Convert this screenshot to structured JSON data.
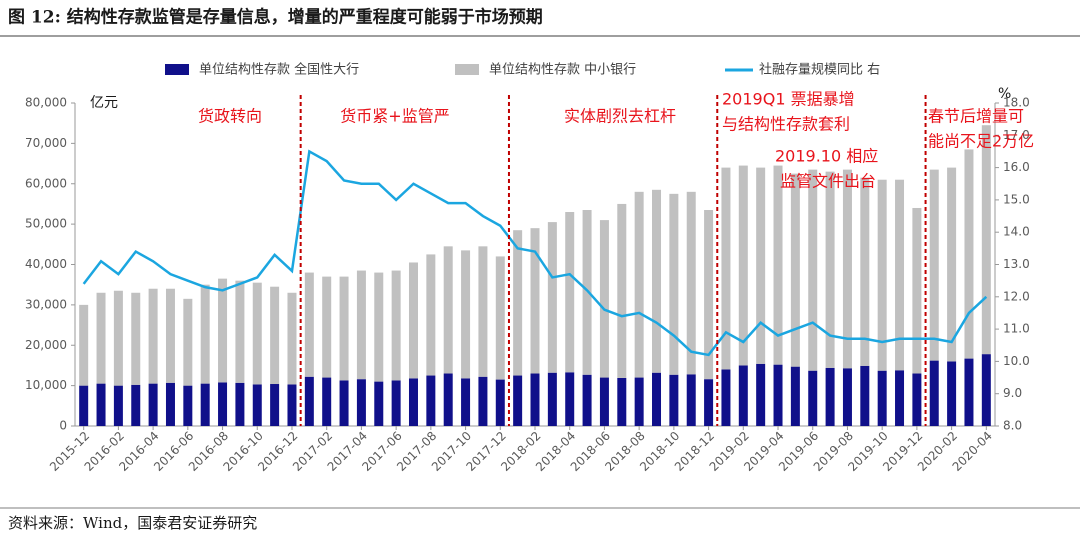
{
  "chart_data": {
    "type": "bar-line",
    "title": "图 12: 结构性存款监管是存量信息，增量的严重程度可能弱于市场预期",
    "source": "资料来源：Wind，国泰君安证券研究",
    "ylabel": "亿元",
    "y2label": "%",
    "categories": [
      "2015-12",
      null,
      "2016-02",
      null,
      "2016-04",
      null,
      "2016-06",
      null,
      "2016-08",
      null,
      "2016-10",
      null,
      "2016-12",
      null,
      "2017-02",
      null,
      "2017-04",
      null,
      "2017-06",
      null,
      "2017-08",
      null,
      "2017-10",
      null,
      "2017-12",
      null,
      "2018-02",
      null,
      "2018-04",
      null,
      "2018-06",
      null,
      "2018-08",
      null,
      "2018-10",
      null,
      "2018-12",
      null,
      "2019-02",
      null,
      "2019-04",
      null,
      "2019-06",
      null,
      "2019-08",
      null,
      "2019-10",
      null,
      "2019-12",
      null,
      "2020-02",
      null,
      "2020-04"
    ],
    "series": [
      {
        "name": "单位结构性存款 全国性大行",
        "color": "#10108a",
        "stack": true,
        "values": [
          10000,
          10500,
          10000,
          10200,
          10500,
          10700,
          10000,
          10500,
          10800,
          10700,
          10300,
          10400,
          10300,
          12200,
          12000,
          11300,
          11600,
          11000,
          11300,
          11800,
          12500,
          13000,
          11800,
          12200,
          11500,
          12500,
          13000,
          13200,
          13300,
          12700,
          12000,
          11900,
          12000,
          13200,
          12700,
          12800,
          11600,
          14000,
          15000,
          15400,
          15200,
          14700,
          13700,
          14400,
          14300,
          14900,
          13700,
          13800,
          13000,
          16200,
          16000,
          16700,
          17800
        ]
      },
      {
        "name": "单位结构性存款 中小银行",
        "color": "#c0c0c0",
        "stack": true,
        "values": [
          20000,
          22500,
          23500,
          22800,
          23500,
          23300,
          21500,
          24500,
          25700,
          25300,
          25200,
          24100,
          22700,
          25800,
          25000,
          25700,
          26900,
          27000,
          27200,
          28700,
          30000,
          31500,
          31700,
          32300,
          30500,
          36000,
          36000,
          37300,
          39700,
          40800,
          39000,
          43100,
          46000,
          45300,
          44800,
          45200,
          41900,
          50000,
          49500,
          48600,
          49300,
          47800,
          49800,
          48600,
          49200,
          46600,
          47300,
          47200,
          41000,
          47300,
          48000,
          51800,
          56700
        ]
      },
      {
        "name": "社融存量规模同比 右",
        "color": "#1ba6e0",
        "axis": "y2",
        "values": [
          12.4,
          13.1,
          12.7,
          13.4,
          13.1,
          12.7,
          12.5,
          12.3,
          12.2,
          12.4,
          12.6,
          13.3,
          12.8,
          16.5,
          16.2,
          15.6,
          15.5,
          15.5,
          15.0,
          15.5,
          15.2,
          14.9,
          14.9,
          14.5,
          14.2,
          13.5,
          13.4,
          12.6,
          12.7,
          12.2,
          11.6,
          11.4,
          11.5,
          11.2,
          10.8,
          10.3,
          10.2,
          10.9,
          10.6,
          11.2,
          10.8,
          11.0,
          11.2,
          10.8,
          10.7,
          10.7,
          10.6,
          10.7,
          10.7,
          10.7,
          10.6,
          11.5,
          12.0
        ]
      }
    ],
    "ylim": [
      0,
      80000
    ],
    "yticks": [
      0,
      {
        "value": 10000,
        "label": "10,000"
      },
      {
        "value": 20000,
        "label": "20,000"
      },
      {
        "value": 30000,
        "label": "30,000"
      },
      {
        "value": 40000,
        "label": "40,000"
      },
      {
        "value": 50000,
        "label": "50,000"
      },
      {
        "value": 60000,
        "label": "60,000"
      },
      {
        "value": 70000,
        "label": "70,000"
      },
      {
        "value": 80000,
        "label": "80,000"
      }
    ],
    "y2lim": [
      8,
      18
    ],
    "y2ticks": [
      {
        "value": 8,
        "label": "8.0"
      },
      {
        "value": 9,
        "label": "9.0"
      },
      {
        "value": 10,
        "label": "10.0"
      },
      {
        "value": 11,
        "label": "11.0"
      },
      {
        "value": 12,
        "label": "12.0"
      },
      {
        "value": 13,
        "label": "13.0"
      },
      {
        "value": 14,
        "label": "14.0"
      },
      {
        "value": 15,
        "label": "15.0"
      },
      {
        "value": 16,
        "label": "16.0"
      },
      {
        "value": 17,
        "label": "17.0"
      },
      {
        "value": 18,
        "label": "18.0"
      }
    ],
    "annotations": [
      "货政转向",
      "货币紧+监管严",
      "实体剧烈去杠杆",
      "2019Q1 票据暴增",
      "与结构性存款套利",
      "2019.10 相应",
      "监管文件出台",
      "春节后增量可",
      "能尚不足2万亿"
    ],
    "annotation_color": "#e8141c"
  }
}
